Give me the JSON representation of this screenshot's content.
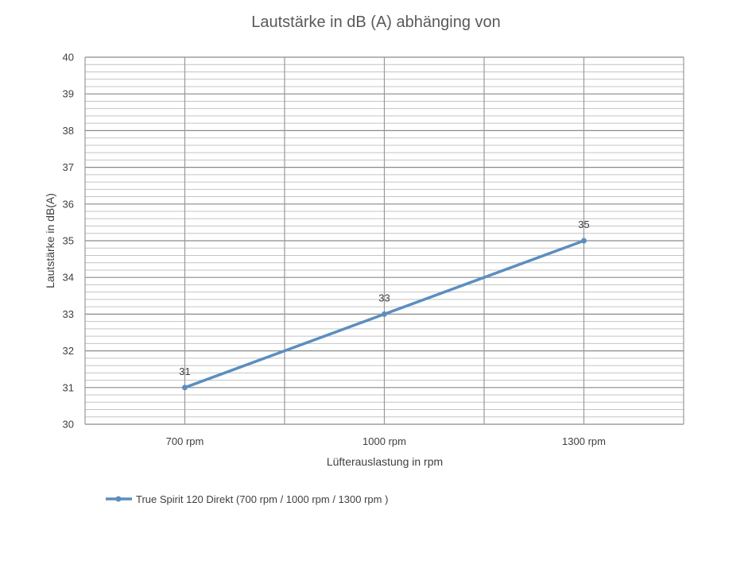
{
  "chart_data": {
    "type": "line",
    "title": "Lautstärke in dB (A) abhänging von",
    "xlabel": "Lüfterauslastung in rpm",
    "ylabel": "Lautstärke in dB(A)",
    "categories": [
      "700 rpm",
      "1000 rpm",
      "1300 rpm"
    ],
    "ylim": [
      30,
      40
    ],
    "y_major_step": 1,
    "y_minor_step": 0.2,
    "grid": true,
    "legend_position": "bottom-left",
    "series": [
      {
        "name": "True Spirit 120 Direkt (700 rpm / 1000 rpm / 1300 rpm )",
        "values": [
          31,
          33,
          35
        ],
        "data_labels": [
          "31",
          "33",
          "35"
        ],
        "color": "#5b8ec0"
      }
    ]
  }
}
